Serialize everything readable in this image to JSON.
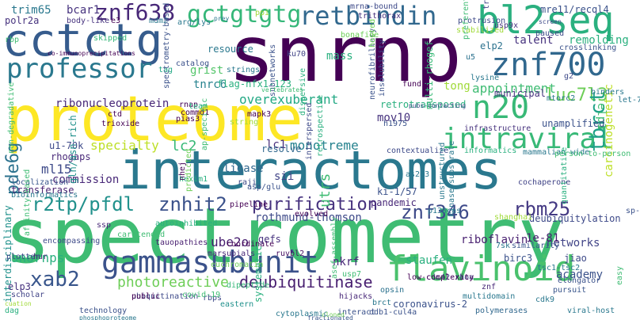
{
  "words": [
    {
      "text": "spectrometry",
      "color": "#3fbc73"
    },
    {
      "text": "proteome",
      "color": "#fde725"
    },
    {
      "text": "interactomes",
      "color": "#2a788e"
    },
    {
      "text": "snrnp",
      "color": "#440154"
    },
    {
      "text": "cctctg",
      "color": "#365c8d"
    },
    {
      "text": "bl2seq",
      "color": "#2ab07f"
    },
    {
      "text": "znf700",
      "color": "#31688e"
    },
    {
      "text": "gammasubunit",
      "color": "#3b528b"
    },
    {
      "text": "flavinoid",
      "color": "#4ac16d"
    },
    {
      "text": "professor",
      "color": "#2a788e"
    },
    {
      "text": "intraviral",
      "color": "#38b977"
    },
    {
      "text": "retbindin",
      "color": "#31688e"
    },
    {
      "text": "n20",
      "color": "#38b977"
    },
    {
      "text": "gctgtgtg",
      "color": "#35b779"
    },
    {
      "text": "znf638",
      "color": "#482878"
    },
    {
      "text": "purification",
      "color": "#46327e"
    },
    {
      "text": "luc7l3",
      "color": "#6ece58"
    },
    {
      "text": "znhit2",
      "color": "#3b528b"
    },
    {
      "text": "r2tp/pfdl",
      "color": "#21918c"
    },
    {
      "text": "znf346",
      "color": "#3e4a89"
    },
    {
      "text": "rbm25",
      "color": "#443983"
    },
    {
      "text": "xab2",
      "color": "#39568c"
    },
    {
      "text": "deubiquitinase",
      "color": "#481f70"
    },
    {
      "text": "photoreactive",
      "color": "#6ece58"
    },
    {
      "text": "tbrct",
      "color": "#1fa187"
    },
    {
      "text": "pde6g",
      "color": "#2c728e"
    },
    {
      "text": "appointment",
      "color": "#3fbc73"
    },
    {
      "text": "overexuberant",
      "color": "#22a884"
    },
    {
      "text": "ribonucleoprotein",
      "color": "#482878"
    },
    {
      "text": "monotreme",
      "color": "#26828e"
    },
    {
      "text": "ube2o",
      "color": "#481f70"
    },
    {
      "text": "snornps",
      "color": "#2ab07f"
    },
    {
      "text": "ml15",
      "color": "#3e4a89"
    },
    {
      "text": "lc2",
      "color": "#38b977"
    },
    {
      "text": "specialty",
      "color": "#bddf26"
    },
    {
      "text": "rothmund-thomson",
      "color": "#3e4a89"
    },
    {
      "text": "tong",
      "color": "#a0da39"
    },
    {
      "text": "talent",
      "color": "#46327e"
    },
    {
      "text": "remolding",
      "color": "#2ab07f"
    },
    {
      "text": "mov10",
      "color": "#46327e"
    },
    {
      "text": "elp2",
      "color": "#2c728e"
    },
    {
      "text": "tnrc6",
      "color": "#26828e"
    },
    {
      "text": "bcar1",
      "color": "#46327e"
    },
    {
      "text": "trim65",
      "color": "#2a788e"
    },
    {
      "text": "resource",
      "color": "#2a788e"
    },
    {
      "text": "lc1",
      "color": "#472d7b"
    },
    {
      "text": "resolve",
      "color": "#31688e"
    },
    {
      "text": "sii",
      "color": "#414487"
    },
    {
      "text": "ki-1/57",
      "color": "#3b528b"
    },
    {
      "text": "utrs",
      "color": "#3fbc73"
    },
    {
      "text": "commission",
      "color": "#482878"
    },
    {
      "text": "rhogaps",
      "color": "#482878"
    },
    {
      "text": "ligase",
      "color": "#31688e"
    },
    {
      "text": "networks",
      "color": "#414487"
    },
    {
      "text": "riboflavin",
      "color": "#481f70"
    },
    {
      "text": "nkrf",
      "color": "#482878"
    },
    {
      "text": "staufen",
      "color": "#2ab07f"
    },
    {
      "text": "academy",
      "color": "#3b528b"
    },
    {
      "text": "1e-81",
      "color": "#481f70"
    },
    {
      "text": "jiao",
      "color": "#3e4a89"
    },
    {
      "text": "birc3",
      "color": "#3b528b"
    },
    {
      "text": "u1-70k",
      "color": "#3e4a89"
    },
    {
      "text": "mass",
      "color": "#2ab07f"
    },
    {
      "text": "grist",
      "color": "#52c569"
    },
    {
      "text": "elp1",
      "color": "#3fbc73"
    },
    {
      "text": "municipal",
      "color": "#46327e"
    },
    {
      "text": "carcinogenetic",
      "color": "#bddf26"
    },
    {
      "text": "gln/asn-rich",
      "color": "#21918c"
    },
    {
      "text": "interdisciplinary",
      "color": "#21918c"
    },
    {
      "text": "transferase",
      "color": "#481f70"
    },
    {
      "text": "polr2a",
      "color": "#46327e"
    },
    {
      "text": "elp3",
      "color": "#46327e"
    },
    {
      "text": "scholar",
      "color": "#414487"
    },
    {
      "text": "retrotransposed",
      "color": "#2ab07f"
    },
    {
      "text": "flag-nfx1-123",
      "color": "#2ab07f"
    },
    {
      "text": "deubiquitylation",
      "color": "#3e4a89"
    },
    {
      "text": "mre11/recql4",
      "color": "#3b528b"
    },
    {
      "text": "pandemic",
      "color": "#482878"
    },
    {
      "text": "unamplified",
      "color": "#3b528b"
    },
    {
      "text": "pipeline",
      "color": "#440154"
    },
    {
      "text": "hexim1",
      "color": "#2ab07f"
    },
    {
      "text": "commd1",
      "color": "#440154"
    },
    {
      "text": "mapk3",
      "color": "#440154"
    },
    {
      "text": "coronavirus-2",
      "color": "#3b528b"
    },
    {
      "text": "ddb1-cul4a",
      "color": "#3b528b"
    },
    {
      "text": "interact",
      "color": "#3b528b"
    },
    {
      "text": "cdc42-rhoa",
      "color": "#3e4a89"
    },
    {
      "text": "tsc1-tsc2",
      "color": "#2a788e"
    },
    {
      "text": "similarity",
      "color": "#39568c"
    },
    {
      "text": "7sk",
      "color": "#2a788e"
    },
    {
      "text": "hijacks",
      "color": "#482878"
    },
    {
      "text": "ruvbl2",
      "color": "#471063"
    },
    {
      "text": "marsupials",
      "color": "#482878"
    },
    {
      "text": "bioinformatics",
      "color": "#2a788e"
    },
    {
      "text": "localization",
      "color": "#39568c"
    },
    {
      "text": "plotter",
      "color": "#3e4a89"
    },
    {
      "text": "hur",
      "color": "#482878"
    },
    {
      "text": "cochaperone",
      "color": "#414487"
    },
    {
      "text": "infrastructure",
      "color": "#46327e"
    },
    {
      "text": "mammalian-wide",
      "color": "#2a788e"
    },
    {
      "text": "informatics",
      "color": "#2ab07f"
    },
    {
      "text": "contextualize",
      "color": "#3e4a89"
    },
    {
      "text": "ubiquitination",
      "color": "#3e4a89"
    },
    {
      "text": "technology",
      "color": "#3b528b"
    },
    {
      "text": "pias3",
      "color": "#440154"
    },
    {
      "text": "rnap",
      "color": "#440154"
    },
    {
      "text": "ctd",
      "color": "#440154"
    },
    {
      "text": "u5",
      "color": "#2c728e"
    },
    {
      "text": "multi-rhogef",
      "color": "#38b977"
    },
    {
      "text": "lysine",
      "color": "#2a788e"
    },
    {
      "text": "fund",
      "color": "#440154"
    },
    {
      "text": "mtorc2",
      "color": "#2a788e"
    },
    {
      "text": "binders",
      "color": "#2a788e"
    },
    {
      "text": "h1975",
      "color": "#3b528b"
    },
    {
      "text": "elongator",
      "color": "#3b528b"
    },
    {
      "text": "pursuit",
      "color": "#39568c"
    },
    {
      "text": "viral-host",
      "color": "#2a788e"
    },
    {
      "text": "polymerases",
      "color": "#31688e"
    },
    {
      "text": "cytoplasmic",
      "color": "#2a788e"
    },
    {
      "text": "eastern",
      "color": "#21918c"
    },
    {
      "text": "dipeptide",
      "color": "#35b779"
    },
    {
      "text": "tauopathies",
      "color": "#481f70"
    },
    {
      "text": "coordinate",
      "color": "#440154"
    },
    {
      "text": "evolved",
      "color": "#440154"
    },
    {
      "text": "carotenoid",
      "color": "#3fbc73"
    },
    {
      "text": "catalog",
      "color": "#3b528b"
    },
    {
      "text": "systematic",
      "color": "#2ab07f"
    },
    {
      "text": "gefs",
      "color": "#46327e"
    },
    {
      "text": "trithorax",
      "color": "#46327e"
    },
    {
      "text": "protrusion",
      "color": "#3e4a89"
    },
    {
      "text": "mrna-bound",
      "color": "#3e4a89"
    },
    {
      "text": "body-like",
      "color": "#46327e"
    },
    {
      "text": "e3",
      "color": "#440154"
    },
    {
      "text": "mdm2",
      "color": "#2a788e"
    },
    {
      "text": "co-immunoprecipitations",
      "color": "#440154"
    },
    {
      "text": "subnetworks",
      "color": "#3b528b"
    },
    {
      "text": "insolubility",
      "color": "#3b528b"
    },
    {
      "text": "neurofibrillary",
      "color": "#3b528b"
    },
    {
      "text": "ku70",
      "color": "#414487"
    },
    {
      "text": "usp9x",
      "color": "#46327e"
    },
    {
      "text": "paused",
      "color": "#3e4a89"
    },
    {
      "text": "transmission",
      "color": "#414487"
    },
    {
      "text": "non-degradative",
      "color": "#3fbc73"
    },
    {
      "text": "trioxide",
      "color": "#440154"
    },
    {
      "text": "dispersive",
      "color": "#2ab07f"
    },
    {
      "text": "retrospective",
      "color": "#2ab07f"
    },
    {
      "text": "interspersed",
      "color": "#3e4a89"
    },
    {
      "text": "unstructured",
      "color": "#2a788e"
    },
    {
      "text": "kinase-substrate",
      "color": "#2a788e"
    },
    {
      "text": "p130cas",
      "color": "#2a788e"
    },
    {
      "text": "low-complexity",
      "color": "#440154"
    },
    {
      "text": "opsin",
      "color": "#2c728e"
    },
    {
      "text": "cdk9",
      "color": "#2a788e"
    },
    {
      "text": "multidomain",
      "color": "#2a788e"
    },
    {
      "text": "quantitative",
      "color": "#2ab07f"
    },
    {
      "text": "shanghai",
      "color": "#a0da39"
    },
    {
      "text": "skipped",
      "color": "#35b779"
    },
    {
      "text": "rbp",
      "color": "#3fbc73"
    },
    {
      "text": "tag",
      "color": "#22a884"
    },
    {
      "text": "strings",
      "color": "#2a788e"
    },
    {
      "text": "string",
      "color": "#a0da39"
    },
    {
      "text": "raji",
      "color": "#3e4a89"
    },
    {
      "text": "as2o3",
      "color": "#2a788e"
    },
    {
      "text": "public",
      "color": "#440154"
    },
    {
      "text": "rbps",
      "color": "#3e4a89"
    },
    {
      "text": "usp7",
      "color": "#3fbc73"
    },
    {
      "text": "znf",
      "color": "#482878"
    },
    {
      "text": "brct",
      "color": "#2a788e"
    },
    {
      "text": "covid-19",
      "color": "#3fbc73"
    },
    {
      "text": "let-7a",
      "color": "#2a788e"
    },
    {
      "text": "sp-ms",
      "color": "#3b528b"
    },
    {
      "text": "easy",
      "color": "#3fbc73"
    },
    {
      "text": "person-to-person",
      "color": "#3fbc73"
    },
    {
      "text": "nhej",
      "color": "#440154"
    },
    {
      "text": "asp/glu",
      "color": "#3b528b"
    },
    {
      "text": "dag",
      "color": "#2ab07f"
    },
    {
      "text": "ppi",
      "color": "#a0da39"
    },
    {
      "text": "arg/lys",
      "color": "#2a788e"
    },
    {
      "text": "stabilized",
      "color": "#a0da39"
    },
    {
      "text": "crosslinking",
      "color": "#3b528b"
    },
    {
      "text": "screen",
      "color": "#3e4a89"
    },
    {
      "text": "autoinhibited",
      "color": "#2ab07f"
    },
    {
      "text": "affinity-based",
      "color": "#3fbc73"
    },
    {
      "text": "encompassing",
      "color": "#3e4a89"
    },
    {
      "text": "phosphoproteome",
      "color": "#2a788e"
    },
    {
      "text": "fractionated",
      "color": "#39568c"
    },
    {
      "text": "asef-assembly",
      "color": "#3fbc73"
    },
    {
      "text": "euchromatin",
      "color": "#6ece58"
    },
    {
      "text": "ap-specific",
      "color": "#3fbc73"
    },
    {
      "text": "team",
      "color": "#2ab07f"
    },
    {
      "text": "pubs-contacting",
      "color": "#3e4a89"
    },
    {
      "text": "prey",
      "color": "#2a788e"
    },
    {
      "text": "predicted",
      "color": "#6ece58"
    },
    {
      "text": "bonafide",
      "color": "#6ece58"
    },
    {
      "text": "vertebrates",
      "color": "#3fbc73"
    },
    {
      "text": "spectrometry-based",
      "color": "#3b528b"
    },
    {
      "text": "g2",
      "color": "#3e4a89"
    },
    {
      "text": "cuation",
      "color": "#a0da39"
    },
    {
      "text": "ssp",
      "color": "#482878"
    },
    {
      "text": "preferential",
      "color": "#3fbc73"
    },
    {
      "text": "cloned",
      "color": "#6ece58"
    },
    {
      "text": "hosted",
      "color": "#6ece58"
    }
  ]
}
